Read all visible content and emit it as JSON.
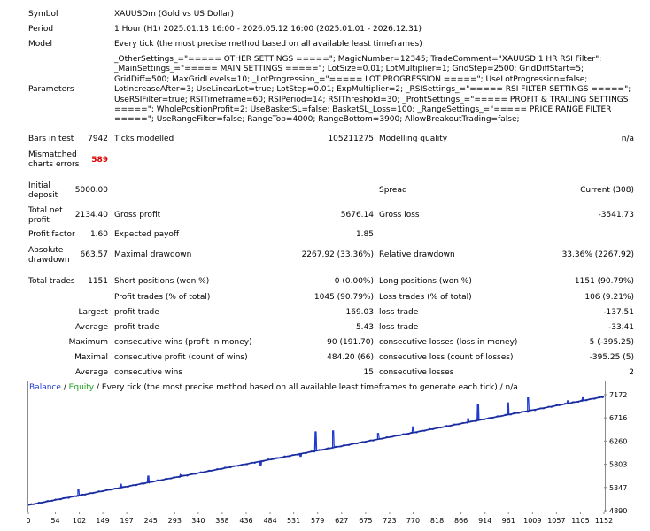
{
  "report": {
    "symbol_label": "Symbol",
    "symbol_value": "XAUUSDm (Gold vs US Dollar)",
    "period_label": "Period",
    "period_value": "1 Hour (H1) 2025.01.13 16:00 - 2026.05.12 16:00 (2025.01.01 - 2026.12.31)",
    "model_label": "Model",
    "model_value": "Every tick (the most precise method based on all available least timeframes)",
    "parameters_label": "Parameters",
    "parameters_value": "_OtherSettings_=\"===== OTHER SETTINGS =====\"; MagicNumber=12345; TradeComment=\"XAUUSD 1 HR RSI Filter\"; _MainSettings_=\"===== MAIN SETTINGS =====\"; LotSize=0.01; LotMultiplier=1; GridStep=2500; GridDiffStart=5; GridDiff=500; MaxGridLevels=10; _LotProgression_=\"===== LOT PROGRESSION =====\"; UseLotProgression=false; LotIncreaseAfter=3; UseLinearLot=true; LotStep=0.01; ExpMultiplier=2; _RSISettings_=\"===== RSI FILTER SETTINGS =====\"; UseRSIFilter=true; RSITimeframe=60; RSIPeriod=14; RSIThreshold=30; _ProfitSettings_=\"===== PROFIT & TRAILING SETTINGS =====\"; WholePositionProfit=2; UseBasketSL=false; BasketSL_Loss=100; _RangeSettings_=\"===== PRICE RANGE FILTER =====\"; UseRangeFilter=false; RangeTop=4000; RangeBottom=3900; AllowBreakoutTrading=false;",
    "bars_label": "Bars in test",
    "bars_value": "7942",
    "ticks_label": "Ticks modelled",
    "ticks_value": "105211275",
    "quality_label": "Modelling quality",
    "quality_value": "n/a",
    "mismatch_label_1": "Mismatched",
    "mismatch_label_2": "charts errors",
    "mismatch_value": "589",
    "deposit_label_1": "Initial",
    "deposit_label_2": "deposit",
    "deposit_value": "5000.00",
    "spread_label": "Spread",
    "spread_value": "Current (308)",
    "netprofit_label_1": "Total net",
    "netprofit_label_2": "profit",
    "netprofit_value": "2134.40",
    "grossprofit_label": "Gross profit",
    "grossprofit_value": "5676.14",
    "grossloss_label": "Gross loss",
    "grossloss_value": "-3541.73",
    "pf_label": "Profit factor",
    "pf_value": "1.60",
    "payoff_label": "Expected payoff",
    "payoff_value": "1.85",
    "absdd_label_1": "Absolute",
    "absdd_label_2": "drawdown",
    "absdd_value": "663.57",
    "maxdd_label": "Maximal drawdown",
    "maxdd_value": "2267.92 (33.36%)",
    "reldd_label": "Relative drawdown",
    "reldd_value": "33.36% (2267.92)",
    "trades_label": "Total trades",
    "trades_value": "1151",
    "short_label": "Short positions (won %)",
    "short_value": "0 (0.00%)",
    "long_label": "Long positions (won %)",
    "long_value": "1151 (90.79%)",
    "profit_trades_label": "Profit trades (% of total)",
    "profit_trades_value": "1045 (90.79%)",
    "loss_trades_label": "Loss trades (% of total)",
    "loss_trades_value": "106 (9.21%)",
    "largest_label": "Largest",
    "largest_profit_label": "profit trade",
    "largest_profit_value": "169.03",
    "largest_loss_label": "loss trade",
    "largest_loss_value": "-137.51",
    "average_label": "Average",
    "average_profit_label": "profit trade",
    "average_profit_value": "5.43",
    "average_loss_label": "loss trade",
    "average_loss_value": "-33.41",
    "maximum_label": "Maximum",
    "max_cw_label": "consecutive wins (profit in money)",
    "max_cw_value": "90 (191.70)",
    "max_cl_label": "consecutive losses (loss in money)",
    "max_cl_value": "5 (-395.25)",
    "maximal_label": "Maximal",
    "maximal_cp_label": "consecutive profit (count of wins)",
    "maximal_cp_value": "484.20 (66)",
    "maximal_cl_label": "consecutive loss (count of losses)",
    "maximal_cl_value": "-395.25 (5)",
    "avg2_label": "Average",
    "avg_cw_label": "consecutive wins",
    "avg_cw_value": "15",
    "avg_cl_label": "consecutive losses",
    "avg_cl_value": "2"
  },
  "chart": {
    "legend_balance": "Balance",
    "legend_sep": " / ",
    "legend_equity": "Equity",
    "legend_rest": " / Every tick (the most precise method based on all available least timeframes to generate each tick) / n/a",
    "colors": {
      "balance": "#1f3bd1",
      "equity": "#1aa31a",
      "border": "#8a8a8a"
    }
  },
  "chart_data": {
    "type": "line",
    "ylim": [
      4890,
      7172
    ],
    "xlim": [
      0,
      1152
    ],
    "y_ticks": [
      "7172",
      "6716",
      "6260",
      "5803",
      "5347",
      "4890"
    ],
    "x_ticks": [
      "0",
      "54",
      "102",
      "149",
      "197",
      "245",
      "293",
      "340",
      "388",
      "436",
      "484",
      "531",
      "579",
      "627",
      "675",
      "723",
      "770",
      "818",
      "866",
      "914",
      "961",
      "1009",
      "1057",
      "1105",
      "1152"
    ],
    "series": [
      {
        "values_x": [
          0,
          1152
        ],
        "values_y": [
          5000,
          7134
        ]
      },
      {
        "spikes": [
          {
            "x": 100,
            "y": 5300
          },
          {
            "x": 185,
            "y": 5420
          },
          {
            "x": 240,
            "y": 5580
          },
          {
            "x": 305,
            "y": 5600
          },
          {
            "x": 465,
            "y": 5770
          },
          {
            "x": 545,
            "y": 5950
          },
          {
            "x": 575,
            "y": 6450
          },
          {
            "x": 610,
            "y": 6460
          },
          {
            "x": 700,
            "y": 6410
          },
          {
            "x": 770,
            "y": 6550
          },
          {
            "x": 880,
            "y": 6700
          },
          {
            "x": 900,
            "y": 6990
          },
          {
            "x": 960,
            "y": 7020
          },
          {
            "x": 1000,
            "y": 7110
          },
          {
            "x": 1080,
            "y": 7060
          },
          {
            "x": 1110,
            "y": 7120
          }
        ]
      }
    ]
  }
}
